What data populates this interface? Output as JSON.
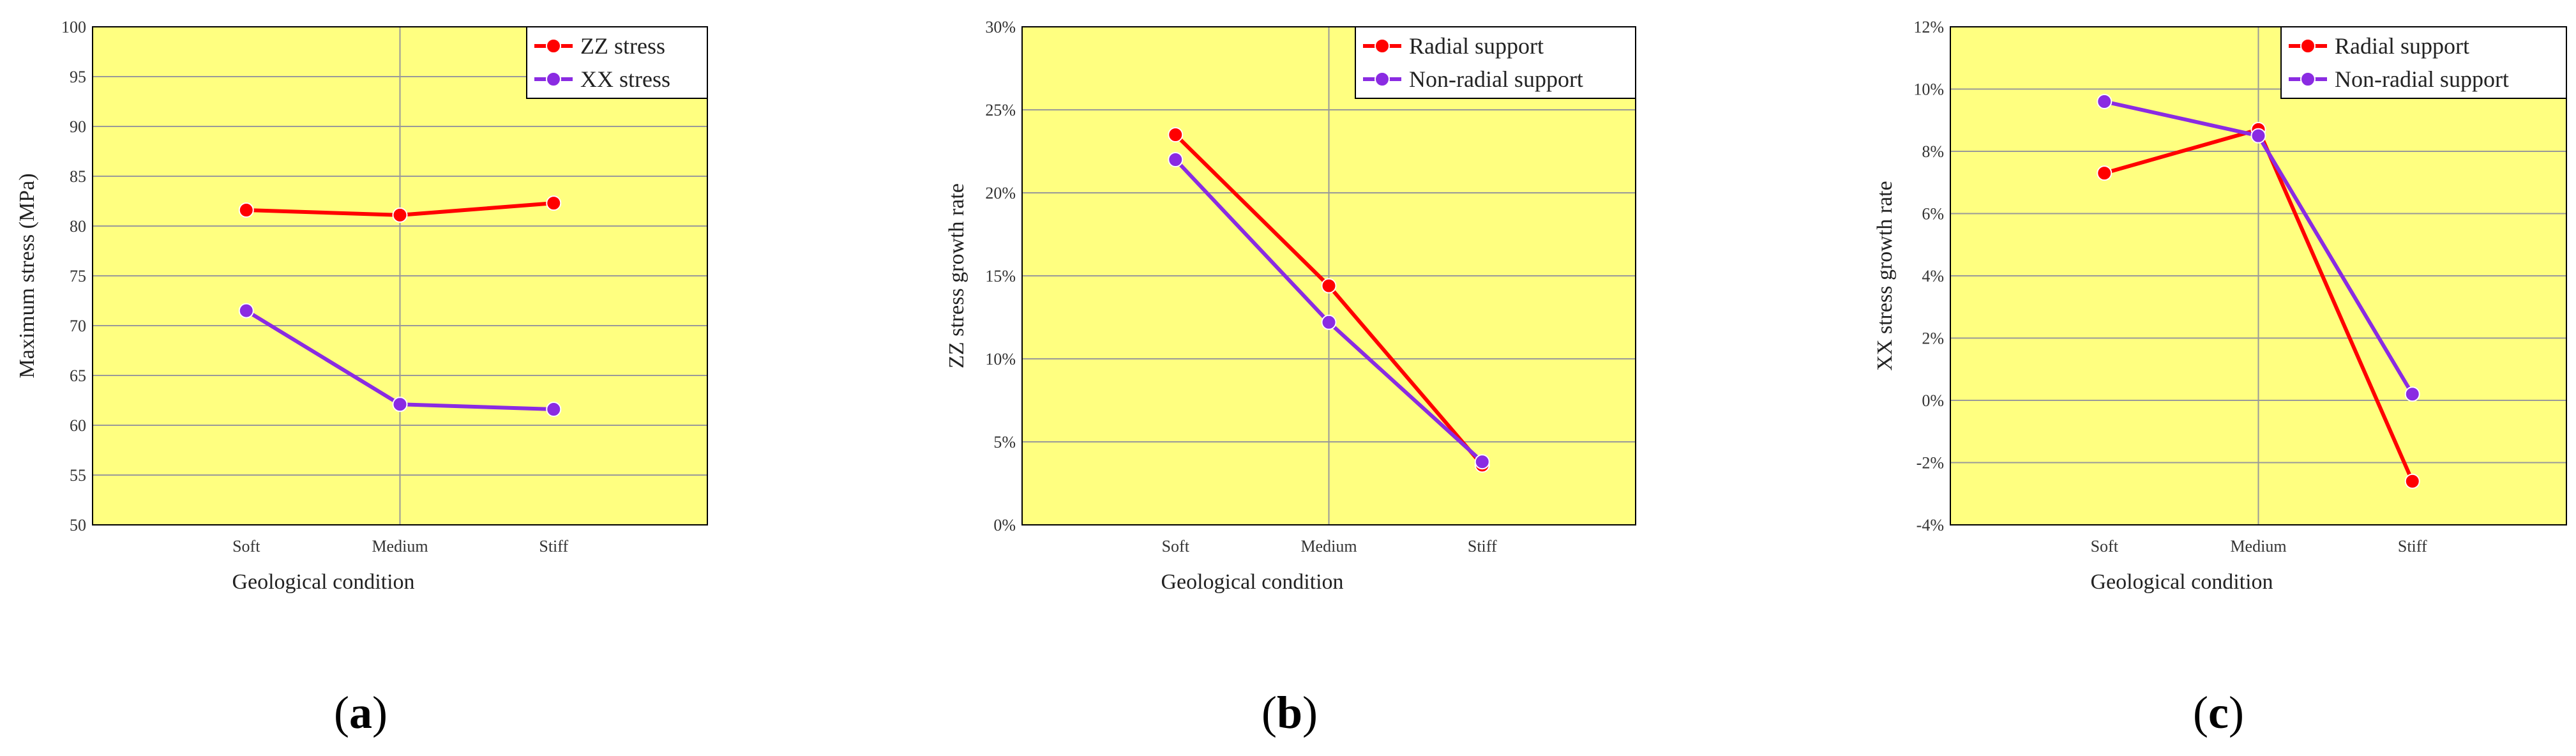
{
  "colors": {
    "plot_bg": "#ffff80",
    "grid": "#999999",
    "axis": "#000000",
    "series_red": "#ff0000",
    "series_purple": "#8a2be2"
  },
  "chart_data": [
    {
      "panel": "a",
      "type": "line",
      "categories": [
        "Soft",
        "Medium",
        "Stiff"
      ],
      "xlabel": "Geological condition",
      "ylabel": "Maximum stress (MPa)",
      "ylim": [
        50,
        100
      ],
      "ytick_step": 5,
      "ytick_labels": [
        "50",
        "55",
        "60",
        "65",
        "70",
        "75",
        "80",
        "85",
        "90",
        "95",
        "100"
      ],
      "grid": true,
      "legend": "top-right",
      "series": [
        {
          "name": "ZZ stress",
          "color": "#ff0000",
          "values": [
            81.6,
            81.1,
            82.3
          ]
        },
        {
          "name": "XX stress",
          "color": "#8a2be2",
          "values": [
            71.5,
            62.1,
            61.6
          ]
        }
      ],
      "label_parts": [
        "(",
        "a",
        ")"
      ]
    },
    {
      "panel": "b",
      "type": "line",
      "categories": [
        "Soft",
        "Medium",
        "Stiff"
      ],
      "xlabel": "Geological condition",
      "ylabel": "ZZ stress growth rate",
      "ylim": [
        0,
        30
      ],
      "ytick_step": 5,
      "ytick_labels": [
        "0%",
        "5%",
        "10%",
        "15%",
        "20%",
        "25%",
        "30%"
      ],
      "grid": true,
      "legend": "top-right",
      "series": [
        {
          "name": "Radial support",
          "color": "#ff0000",
          "values": [
            23.5,
            14.4,
            3.6
          ]
        },
        {
          "name": "Non-radial support",
          "color": "#8a2be2",
          "values": [
            22.0,
            12.2,
            3.8
          ]
        }
      ],
      "label_parts": [
        "(",
        "b",
        ")"
      ]
    },
    {
      "panel": "c",
      "type": "line",
      "categories": [
        "Soft",
        "Medium",
        "Stiff"
      ],
      "xlabel": "Geological condition",
      "ylabel": "XX stress growth rate",
      "ylim": [
        -4,
        12
      ],
      "ytick_step": 2,
      "ytick_labels": [
        "-4%",
        "-2%",
        "0%",
        "2%",
        "4%",
        "6%",
        "8%",
        "10%",
        "12%"
      ],
      "grid": true,
      "legend": "top-right",
      "series": [
        {
          "name": "Radial support",
          "color": "#ff0000",
          "values": [
            7.3,
            8.7,
            -2.6
          ]
        },
        {
          "name": "Non-radial support",
          "color": "#8a2be2",
          "values": [
            9.6,
            8.5,
            0.2
          ]
        }
      ],
      "label_parts": [
        "(",
        "c",
        ")"
      ]
    }
  ]
}
